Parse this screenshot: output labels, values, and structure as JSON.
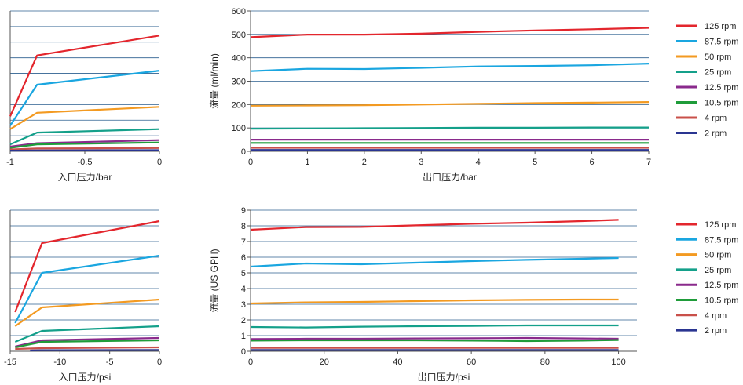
{
  "legend": [
    {
      "name": "125 rpm",
      "color": "#e3262d"
    },
    {
      "name": "87.5 rpm",
      "color": "#1aa6e0"
    },
    {
      "name": "50 rpm",
      "color": "#f39a21"
    },
    {
      "name": "25 rpm",
      "color": "#14a08a"
    },
    {
      "name": "12.5 rpm",
      "color": "#8a2a8c"
    },
    {
      "name": "10.5 rpm",
      "color": "#1f9c3a"
    },
    {
      "name": "4 rpm",
      "color": "#c9504a"
    },
    {
      "name": "2 rpm",
      "color": "#2a3591"
    }
  ],
  "chart_data": [
    {
      "type": "line",
      "xlabel": "入口压力/bar",
      "ylabel": "",
      "xlim": [
        -1,
        0
      ],
      "ylim": [
        0,
        600
      ],
      "xticks": [
        "-1",
        "-0.5",
        "0"
      ],
      "yticks": [],
      "grid": true,
      "series": [
        {
          "name": "125 rpm",
          "x": [
            -1,
            -0.82,
            0
          ],
          "y": [
            150,
            410,
            495
          ]
        },
        {
          "name": "87.5 rpm",
          "x": [
            -1,
            -0.82,
            0
          ],
          "y": [
            110,
            285,
            345
          ]
        },
        {
          "name": "50 rpm",
          "x": [
            -1,
            -0.82,
            0
          ],
          "y": [
            95,
            165,
            190
          ]
        },
        {
          "name": "25 rpm",
          "x": [
            -1,
            -0.82,
            0
          ],
          "y": [
            30,
            80,
            95
          ]
        },
        {
          "name": "12.5 rpm",
          "x": [
            -1,
            -0.82,
            0
          ],
          "y": [
            20,
            35,
            48
          ]
        },
        {
          "name": "10.5 rpm",
          "x": [
            -1,
            -0.82,
            0
          ],
          "y": [
            15,
            30,
            38
          ]
        },
        {
          "name": "4 rpm",
          "x": [
            -1,
            -0.82,
            0
          ],
          "y": [
            8,
            12,
            14
          ]
        },
        {
          "name": "2 rpm",
          "x": [
            -1,
            -0.82,
            0
          ],
          "y": [
            3,
            4,
            5
          ]
        }
      ]
    },
    {
      "type": "line",
      "xlabel": "出口压力/bar",
      "ylabel": "流量 (ml/min)",
      "xlim": [
        0,
        7
      ],
      "ylim": [
        0,
        600
      ],
      "xticks": [
        "0",
        "1",
        "2",
        "3",
        "4",
        "5",
        "6",
        "7"
      ],
      "yticks": [
        "0",
        "100",
        "200",
        "300",
        "400",
        "500",
        "600"
      ],
      "grid": true,
      "legend_position": "right",
      "series": [
        {
          "name": "125 rpm",
          "x": [
            0,
            1,
            2,
            3,
            4,
            5,
            6,
            7
          ],
          "y": [
            488,
            499,
            499,
            503,
            511,
            517,
            522,
            528
          ]
        },
        {
          "name": "87.5 rpm",
          "x": [
            0,
            1,
            2,
            3,
            4,
            5,
            6,
            7
          ],
          "y": [
            343,
            353,
            352,
            357,
            363,
            365,
            368,
            375
          ]
        },
        {
          "name": "50 rpm",
          "x": [
            0,
            1,
            2,
            3,
            4,
            5,
            6,
            7
          ],
          "y": [
            195,
            196,
            197,
            200,
            203,
            206,
            208,
            211
          ]
        },
        {
          "name": "25 rpm",
          "x": [
            0,
            1,
            2,
            3,
            4,
            5,
            6,
            7
          ],
          "y": [
            97,
            98,
            99,
            100,
            101,
            101,
            102,
            102
          ]
        },
        {
          "name": "12.5 rpm",
          "x": [
            0,
            1,
            2,
            3,
            4,
            5,
            6,
            7
          ],
          "y": [
            50,
            50,
            50,
            50,
            50,
            50,
            50,
            50
          ]
        },
        {
          "name": "10.5 rpm",
          "x": [
            0,
            1,
            2,
            3,
            4,
            5,
            6,
            7
          ],
          "y": [
            36,
            36,
            36,
            36,
            36,
            36,
            36,
            36
          ]
        },
        {
          "name": "4 rpm",
          "x": [
            0,
            1,
            2,
            3,
            4,
            5,
            6,
            7
          ],
          "y": [
            15,
            15,
            15,
            15,
            15,
            15,
            15,
            15
          ]
        },
        {
          "name": "2 rpm",
          "x": [
            0,
            1,
            2,
            3,
            4,
            5,
            6,
            7
          ],
          "y": [
            6,
            6,
            6,
            6,
            6,
            6,
            6,
            6
          ]
        }
      ]
    },
    {
      "type": "line",
      "xlabel": "入口压力/psi",
      "ylabel": "",
      "xlim": [
        -15,
        0
      ],
      "ylim": [
        0,
        9
      ],
      "xticks": [
        "-15",
        "-10",
        "-5",
        "0"
      ],
      "yticks": [],
      "grid": true,
      "series": [
        {
          "name": "125 rpm",
          "x": [
            -14.5,
            -11.8,
            0
          ],
          "y": [
            2.5,
            6.9,
            8.3
          ]
        },
        {
          "name": "87.5 rpm",
          "x": [
            -14.5,
            -11.8,
            0
          ],
          "y": [
            1.8,
            5.0,
            6.1
          ]
        },
        {
          "name": "50 rpm",
          "x": [
            -14.5,
            -11.8,
            0
          ],
          "y": [
            1.6,
            2.8,
            3.3
          ]
        },
        {
          "name": "25 rpm",
          "x": [
            -14.5,
            -11.8,
            0
          ],
          "y": [
            0.6,
            1.3,
            1.6
          ]
        },
        {
          "name": "12.5 rpm",
          "x": [
            -14.5,
            -11.8,
            0
          ],
          "y": [
            0.3,
            0.7,
            0.85
          ]
        },
        {
          "name": "10.5 rpm",
          "x": [
            -14.5,
            -11.8,
            0
          ],
          "y": [
            0.25,
            0.6,
            0.7
          ]
        },
        {
          "name": "4 rpm",
          "x": [
            -14.5,
            -11.8,
            0
          ],
          "y": [
            0.15,
            0.2,
            0.25
          ]
        },
        {
          "name": "2 rpm",
          "x": [
            -13,
            -11.8,
            0
          ],
          "y": [
            0.05,
            0.07,
            0.08
          ]
        }
      ]
    },
    {
      "type": "line",
      "xlabel": "出口压力/psi",
      "ylabel": "流量 (US GPH)",
      "xlim": [
        0,
        105
      ],
      "ylim": [
        0,
        9
      ],
      "xticks": [
        "0",
        "20",
        "40",
        "60",
        "80",
        "100"
      ],
      "yticks": [
        "0",
        "1",
        "2",
        "3",
        "4",
        "5",
        "6",
        "7",
        "8",
        "9"
      ],
      "grid": true,
      "legend_position": "right",
      "series": [
        {
          "name": "125 rpm",
          "x": [
            0,
            15,
            30,
            45,
            60,
            75,
            90,
            100
          ],
          "y": [
            7.75,
            7.92,
            7.93,
            8.03,
            8.13,
            8.2,
            8.3,
            8.38
          ]
        },
        {
          "name": "87.5 rpm",
          "x": [
            0,
            15,
            30,
            45,
            60,
            75,
            90,
            100
          ],
          "y": [
            5.4,
            5.6,
            5.55,
            5.65,
            5.75,
            5.83,
            5.9,
            5.95
          ]
        },
        {
          "name": "50 rpm",
          "x": [
            0,
            15,
            30,
            45,
            60,
            75,
            90,
            100
          ],
          "y": [
            3.05,
            3.12,
            3.15,
            3.2,
            3.25,
            3.28,
            3.3,
            3.3
          ]
        },
        {
          "name": "25 rpm",
          "x": [
            0,
            15,
            30,
            45,
            60,
            75,
            90,
            100
          ],
          "y": [
            1.55,
            1.52,
            1.57,
            1.6,
            1.62,
            1.65,
            1.65,
            1.65
          ]
        },
        {
          "name": "12.5 rpm",
          "x": [
            0,
            15,
            30,
            45,
            60,
            75,
            90,
            100
          ],
          "y": [
            0.78,
            0.8,
            0.8,
            0.82,
            0.83,
            0.85,
            0.82,
            0.8
          ]
        },
        {
          "name": "10.5 rpm",
          "x": [
            0,
            15,
            30,
            45,
            60,
            75,
            90,
            100
          ],
          "y": [
            0.68,
            0.7,
            0.7,
            0.7,
            0.68,
            0.65,
            0.68,
            0.72
          ]
        },
        {
          "name": "4 rpm",
          "x": [
            0,
            15,
            30,
            45,
            60,
            75,
            90,
            100
          ],
          "y": [
            0.22,
            0.22,
            0.22,
            0.22,
            0.22,
            0.22,
            0.22,
            0.22
          ]
        },
        {
          "name": "2 rpm",
          "x": [
            0,
            15,
            30,
            45,
            60,
            75,
            90,
            100
          ],
          "y": [
            0.08,
            0.08,
            0.08,
            0.08,
            0.08,
            0.08,
            0.08,
            0.08
          ]
        }
      ]
    }
  ]
}
